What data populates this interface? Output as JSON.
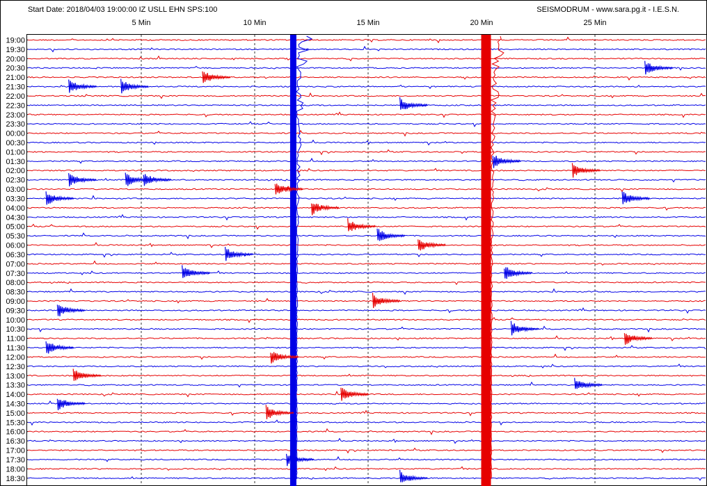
{
  "header": {
    "start_info": "Start Date: 2018/04/03 19:00:00 IZ USLL EHN SPS:100",
    "credits": "SEISMODRUM - www.sara.pg.it - I.E.S.N."
  },
  "colors": {
    "trace_a": "#e60000",
    "trace_b": "#0000e6",
    "background": "#ffffff",
    "frame": "#000000"
  },
  "chart_data": {
    "type": "line",
    "title": "",
    "xlabel": "",
    "ylabel": "",
    "x_ticks": [
      {
        "minute": 5,
        "label": "5 Min"
      },
      {
        "minute": 10,
        "label": "10 Min"
      },
      {
        "minute": 15,
        "label": "15 Min"
      },
      {
        "minute": 20,
        "label": "20 Min"
      },
      {
        "minute": 25,
        "label": "25 Min"
      }
    ],
    "xlim": [
      0,
      30
    ],
    "row_labels": [
      "19:00",
      "19:30",
      "20:00",
      "20:30",
      "21:00",
      "21:30",
      "22:00",
      "22:30",
      "23:00",
      "23:30",
      "00:00",
      "00:30",
      "01:00",
      "01:30",
      "02:00",
      "02:30",
      "03:00",
      "03:30",
      "04:00",
      "04:30",
      "05:00",
      "05:30",
      "06:00",
      "06:30",
      "07:00",
      "07:30",
      "08:00",
      "08:30",
      "09:00",
      "09:30",
      "10:00",
      "10:30",
      "11:00",
      "11:30",
      "12:00",
      "12:30",
      "13:00",
      "13:30",
      "14:00",
      "14:30",
      "15:00",
      "15:30",
      "16:00",
      "16:30",
      "17:00",
      "17:30",
      "18:00",
      "18:30"
    ],
    "grid": "dashed-vertical-at-ticks",
    "events": [
      {
        "start_row": 0,
        "minute": 11.7,
        "end_row": 47,
        "note": "continuous",
        "color": "b"
      },
      {
        "start_row": 0,
        "minute": 20.2,
        "end_row": 47,
        "note": "continuous",
        "color": "a"
      },
      {
        "row": 3,
        "minute": 27.2
      },
      {
        "row": 5,
        "minute": 1.8
      },
      {
        "row": 5,
        "minute": 4.1
      },
      {
        "row": 4,
        "minute": 7.7
      },
      {
        "row": 7,
        "minute": 16.4
      },
      {
        "row": 13,
        "minute": 20.5
      },
      {
        "row": 14,
        "minute": 24.0
      },
      {
        "row": 15,
        "minute": 1.8
      },
      {
        "row": 15,
        "minute": 4.3
      },
      {
        "row": 15,
        "minute": 5.1
      },
      {
        "row": 17,
        "minute": 0.8
      },
      {
        "row": 17,
        "minute": 26.2
      },
      {
        "row": 16,
        "minute": 10.9
      },
      {
        "row": 18,
        "minute": 12.5
      },
      {
        "row": 20,
        "minute": 14.1
      },
      {
        "row": 21,
        "minute": 15.4
      },
      {
        "row": 23,
        "minute": 8.7
      },
      {
        "row": 22,
        "minute": 17.2
      },
      {
        "row": 25,
        "minute": 6.8
      },
      {
        "row": 25,
        "minute": 21.0
      },
      {
        "row": 28,
        "minute": 15.2
      },
      {
        "row": 29,
        "minute": 1.3
      },
      {
        "row": 31,
        "minute": 21.3
      },
      {
        "row": 32,
        "minute": 26.3
      },
      {
        "row": 33,
        "minute": 0.8
      },
      {
        "row": 34,
        "minute": 10.7
      },
      {
        "row": 36,
        "minute": 2.0
      },
      {
        "row": 38,
        "minute": 13.8
      },
      {
        "row": 37,
        "minute": 24.1
      },
      {
        "row": 39,
        "minute": 1.3
      },
      {
        "row": 40,
        "minute": 10.5
      },
      {
        "row": 45,
        "minute": 11.4
      },
      {
        "row": 47,
        "minute": 16.4
      }
    ]
  }
}
